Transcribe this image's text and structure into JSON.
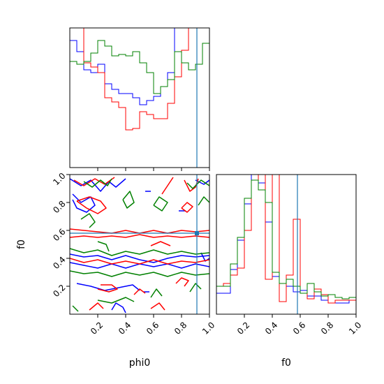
{
  "chart_data": {
    "type": "corner",
    "parameters": [
      "phi0",
      "f0"
    ],
    "series_colors": [
      "#0000ff",
      "#ff0000",
      "#008000"
    ],
    "truth": {
      "phi0": 0.91,
      "f0": 0.58,
      "color": "#1f77b4"
    },
    "xlim": [
      0,
      1
    ],
    "ylim": [
      0,
      1
    ],
    "ticks": [
      0.2,
      0.4,
      0.6,
      0.8,
      1.0
    ],
    "tick_labels": [
      "0.2",
      "0.4",
      "0.6",
      "0.8",
      "1.0"
    ],
    "hist_phi0": {
      "bins": [
        0,
        0.05,
        0.1,
        0.15,
        0.2,
        0.25,
        0.3,
        0.35,
        0.4,
        0.45,
        0.5,
        0.55,
        0.6,
        0.65,
        0.7,
        0.75,
        0.8,
        0.85,
        0.9,
        0.95,
        1.0
      ],
      "ymax": 1.0,
      "series": [
        {
          "color": "#0000ff",
          "values": [
            0.91,
            0.83,
            0.7,
            0.68,
            0.74,
            0.6,
            0.56,
            0.53,
            0.53,
            0.5,
            0.45,
            0.48,
            0.51,
            0.58,
            0.68,
            1.0,
            1.0,
            1.0,
            1.0,
            1.0
          ]
        },
        {
          "color": "#ff0000",
          "values": [
            1.0,
            1.0,
            0.75,
            0.72,
            0.68,
            0.5,
            0.47,
            0.43,
            0.27,
            0.28,
            0.4,
            0.38,
            0.35,
            0.35,
            0.46,
            0.65,
            0.84,
            1.0,
            1.0,
            1.0
          ]
        },
        {
          "color": "#008000",
          "values": [
            0.76,
            0.74,
            0.76,
            0.82,
            0.91,
            0.87,
            0.8,
            0.81,
            0.8,
            0.83,
            0.75,
            0.68,
            0.53,
            0.58,
            0.63,
            0.83,
            0.75,
            0.7,
            0.74,
            0.89
          ]
        }
      ]
    },
    "hist_f0": {
      "bins": [
        0,
        0.05,
        0.1,
        0.15,
        0.2,
        0.25,
        0.3,
        0.35,
        0.4,
        0.45,
        0.5,
        0.55,
        0.6,
        0.65,
        0.7,
        0.75,
        0.8,
        0.85,
        0.9,
        0.95,
        1.0
      ],
      "ymax": 1.0,
      "series": [
        {
          "color": "#0000ff",
          "values": [
            0.15,
            0.15,
            0.32,
            0.53,
            0.79,
            1.0,
            0.94,
            0.66,
            0.27,
            0.22,
            0.2,
            0.16,
            0.17,
            0.13,
            0.13,
            0.1,
            0.08,
            0.08,
            0.08,
            0.1
          ]
        },
        {
          "color": "#ff0000",
          "values": [
            0.2,
            0.22,
            0.28,
            0.33,
            0.6,
            0.96,
            1.0,
            0.25,
            1.0,
            0.09,
            0.28,
            0.68,
            0.15,
            0.11,
            0.18,
            0.14,
            0.08,
            0.1,
            0.1,
            0.1
          ]
        },
        {
          "color": "#008000",
          "values": [
            0.2,
            0.2,
            0.36,
            0.55,
            0.83,
            0.96,
            0.89,
            0.8,
            0.3,
            0.22,
            0.25,
            0.2,
            0.15,
            0.22,
            0.16,
            0.13,
            0.14,
            0.12,
            0.11,
            0.12
          ]
        }
      ]
    },
    "contours_2d": [
      {
        "color": "#0000ff",
        "paths": [
          [
            [
              0.0,
              0.43
            ],
            [
              0.1,
              0.41
            ],
            [
              0.2,
              0.42
            ],
            [
              0.3,
              0.39
            ],
            [
              0.4,
              0.42
            ],
            [
              0.5,
              0.39
            ],
            [
              0.6,
              0.37
            ],
            [
              0.7,
              0.4
            ],
            [
              0.8,
              0.42
            ],
            [
              0.9,
              0.41
            ],
            [
              1.0,
              0.42
            ]
          ],
          [
            [
              0.0,
              0.37
            ],
            [
              0.1,
              0.35
            ],
            [
              0.2,
              0.33
            ],
            [
              0.3,
              0.36
            ],
            [
              0.4,
              0.33
            ],
            [
              0.5,
              0.36
            ],
            [
              0.6,
              0.34
            ],
            [
              0.7,
              0.36
            ],
            [
              0.8,
              0.33
            ],
            [
              0.9,
              0.36
            ],
            [
              1.0,
              0.34
            ]
          ],
          [
            [
              0.0,
              0.97
            ],
            [
              0.08,
              0.92
            ],
            [
              0.15,
              0.96
            ],
            [
              0.22,
              0.88
            ],
            [
              0.28,
              0.95
            ],
            [
              0.33,
              0.91
            ],
            [
              0.4,
              0.97
            ]
          ],
          [
            [
              0.02,
              0.86
            ],
            [
              0.08,
              0.8
            ],
            [
              0.15,
              0.84
            ],
            [
              0.18,
              0.78
            ],
            [
              0.12,
              0.73
            ],
            [
              0.05,
              0.76
            ],
            [
              0.02,
              0.82
            ]
          ],
          [
            [
              0.05,
              0.22
            ],
            [
              0.15,
              0.2
            ],
            [
              0.25,
              0.17
            ],
            [
              0.35,
              0.19
            ],
            [
              0.45,
              0.21
            ],
            [
              0.5,
              0.17
            ]
          ],
          [
            [
              0.3,
              0.03
            ],
            [
              0.33,
              0.08
            ],
            [
              0.38,
              0.05
            ],
            [
              0.4,
              0.01
            ]
          ],
          [
            [
              0.54,
              0.88
            ],
            [
              0.58,
              0.88
            ]
          ],
          [
            [
              0.53,
              0.16
            ],
            [
              0.57,
              0.16
            ]
          ],
          [
            [
              0.78,
              0.74
            ],
            [
              0.83,
              0.74
            ]
          ],
          [
            [
              0.9,
              0.96
            ],
            [
              0.96,
              0.93
            ],
            [
              1.0,
              0.96
            ]
          ],
          [
            [
              0.94,
              0.44
            ],
            [
              0.97,
              0.38
            ],
            [
              1.0,
              0.4
            ]
          ]
        ]
      },
      {
        "color": "#ff0000",
        "paths": [
          [
            [
              0.0,
              0.61
            ],
            [
              0.1,
              0.6
            ],
            [
              0.2,
              0.59
            ],
            [
              0.3,
              0.58
            ],
            [
              0.4,
              0.6
            ],
            [
              0.5,
              0.58
            ],
            [
              0.6,
              0.6
            ],
            [
              0.7,
              0.58
            ],
            [
              0.8,
              0.6
            ],
            [
              0.9,
              0.59
            ],
            [
              1.0,
              0.6
            ]
          ],
          [
            [
              0.0,
              0.55
            ],
            [
              0.1,
              0.56
            ],
            [
              0.2,
              0.55
            ],
            [
              0.3,
              0.56
            ],
            [
              0.4,
              0.55
            ],
            [
              0.5,
              0.57
            ],
            [
              0.6,
              0.55
            ],
            [
              0.7,
              0.56
            ],
            [
              0.8,
              0.55
            ],
            [
              0.9,
              0.56
            ],
            [
              1.0,
              0.55
            ]
          ],
          [
            [
              0.0,
              0.4
            ],
            [
              0.1,
              0.37
            ],
            [
              0.2,
              0.39
            ],
            [
              0.3,
              0.36
            ],
            [
              0.4,
              0.38
            ],
            [
              0.5,
              0.36
            ],
            [
              0.6,
              0.39
            ],
            [
              0.7,
              0.36
            ],
            [
              0.8,
              0.38
            ],
            [
              0.9,
              0.37
            ],
            [
              1.0,
              0.39
            ]
          ],
          [
            [
              0.03,
              0.96
            ],
            [
              0.1,
              0.92
            ],
            [
              0.18,
              0.97
            ],
            [
              0.25,
              0.93
            ],
            [
              0.32,
              0.98
            ]
          ],
          [
            [
              0.05,
              0.81
            ],
            [
              0.12,
              0.76
            ],
            [
              0.2,
              0.72
            ],
            [
              0.26,
              0.76
            ],
            [
              0.22,
              0.81
            ],
            [
              0.14,
              0.84
            ],
            [
              0.05,
              0.81
            ]
          ],
          [
            [
              0.66,
              0.86
            ],
            [
              0.7,
              0.92
            ],
            [
              0.74,
              0.98
            ]
          ],
          [
            [
              0.82,
              0.96
            ],
            [
              0.86,
              0.88
            ],
            [
              0.9,
              0.91
            ],
            [
              0.92,
              0.97
            ]
          ],
          [
            [
              0.58,
              0.49
            ],
            [
              0.65,
              0.52
            ],
            [
              0.72,
              0.49
            ]
          ],
          [
            [
              0.2,
              0.18
            ],
            [
              0.28,
              0.16
            ],
            [
              0.34,
              0.18
            ],
            [
              0.3,
              0.21
            ],
            [
              0.22,
              0.21
            ]
          ],
          [
            [
              0.46,
              0.14
            ],
            [
              0.5,
              0.18
            ],
            [
              0.54,
              0.15
            ]
          ],
          [
            [
              0.76,
              0.22
            ],
            [
              0.8,
              0.26
            ],
            [
              0.85,
              0.24
            ],
            [
              0.82,
              0.2
            ]
          ],
          [
            [
              0.8,
              0.76
            ],
            [
              0.84,
              0.8
            ],
            [
              0.88,
              0.77
            ],
            [
              0.84,
              0.73
            ],
            [
              0.8,
              0.76
            ]
          ],
          [
            [
              0.14,
              0.03
            ],
            [
              0.2,
              0.08
            ],
            [
              0.24,
              0.04
            ]
          ],
          [
            [
              0.58,
              0.04
            ],
            [
              0.64,
              0.08
            ],
            [
              0.68,
              0.03
            ]
          ]
        ]
      },
      {
        "color": "#008000",
        "paths": [
          [
            [
              0.0,
              0.47
            ],
            [
              0.1,
              0.44
            ],
            [
              0.2,
              0.46
            ],
            [
              0.3,
              0.42
            ],
            [
              0.4,
              0.45
            ],
            [
              0.5,
              0.43
            ],
            [
              0.6,
              0.46
            ],
            [
              0.7,
              0.43
            ],
            [
              0.8,
              0.45
            ],
            [
              0.9,
              0.43
            ],
            [
              1.0,
              0.44
            ]
          ],
          [
            [
              0.0,
              0.31
            ],
            [
              0.1,
              0.29
            ],
            [
              0.2,
              0.3
            ],
            [
              0.3,
              0.27
            ],
            [
              0.4,
              0.3
            ],
            [
              0.5,
              0.28
            ],
            [
              0.6,
              0.3
            ],
            [
              0.7,
              0.27
            ],
            [
              0.8,
              0.3
            ],
            [
              0.9,
              0.28
            ],
            [
              1.0,
              0.29
            ]
          ],
          [
            [
              0.1,
              0.95
            ],
            [
              0.16,
              0.91
            ],
            [
              0.22,
              0.96
            ],
            [
              0.27,
              0.92
            ],
            [
              0.3,
              0.97
            ]
          ],
          [
            [
              0.38,
              0.82
            ],
            [
              0.43,
              0.88
            ],
            [
              0.46,
              0.8
            ],
            [
              0.41,
              0.76
            ],
            [
              0.38,
              0.82
            ]
          ],
          [
            [
              0.08,
              0.68
            ],
            [
              0.14,
              0.72
            ],
            [
              0.18,
              0.66
            ],
            [
              0.14,
              0.62
            ]
          ],
          [
            [
              0.2,
              0.52
            ],
            [
              0.26,
              0.5
            ],
            [
              0.28,
              0.45
            ]
          ],
          [
            [
              0.6,
              0.78
            ],
            [
              0.64,
              0.84
            ],
            [
              0.7,
              0.8
            ],
            [
              0.66,
              0.74
            ],
            [
              0.6,
              0.78
            ]
          ],
          [
            [
              0.84,
              0.94
            ],
            [
              0.88,
              0.9
            ],
            [
              0.94,
              0.96
            ],
            [
              1.0,
              0.92
            ]
          ],
          [
            [
              0.92,
              0.78
            ],
            [
              0.96,
              0.84
            ],
            [
              1.0,
              0.8
            ]
          ],
          [
            [
              0.2,
              0.1
            ],
            [
              0.3,
              0.08
            ],
            [
              0.4,
              0.12
            ],
            [
              0.46,
              0.09
            ]
          ],
          [
            [
              0.02,
              0.06
            ],
            [
              0.06,
              0.02
            ]
          ],
          [
            [
              0.58,
              0.12
            ],
            [
              0.62,
              0.18
            ],
            [
              0.66,
              0.13
            ]
          ],
          [
            [
              0.86,
              0.16
            ],
            [
              0.9,
              0.22
            ],
            [
              0.94,
              0.18
            ]
          ]
        ]
      }
    ]
  },
  "labels": {
    "x_label_phi0": "phi0",
    "x_label_f0": "f0",
    "y_label_f0": "f0"
  }
}
